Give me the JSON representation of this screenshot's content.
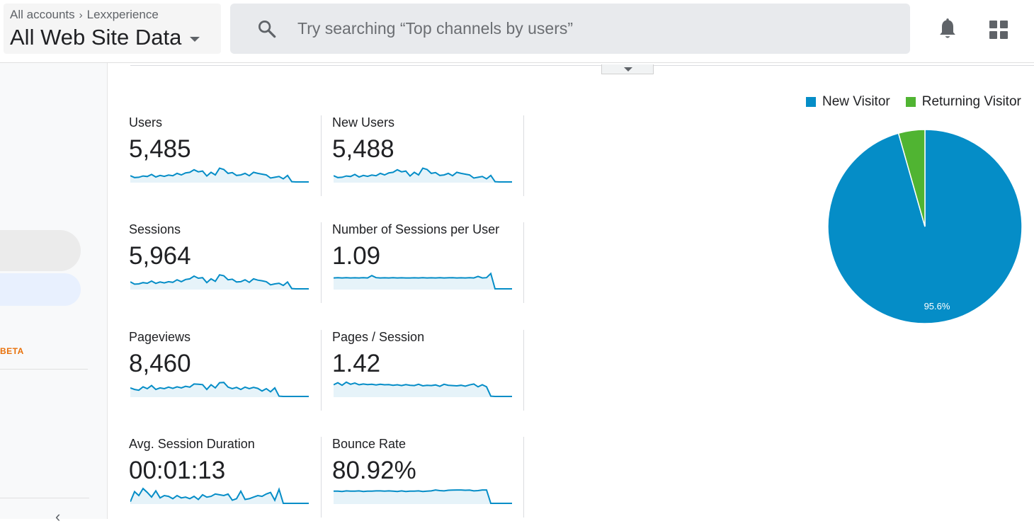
{
  "header": {
    "breadcrumb": [
      "All accounts",
      "Lexxperience"
    ],
    "view_name": "All Web Site Data",
    "search_placeholder": "Try searching “Top channels by users”"
  },
  "sidebar": {
    "beta_label": "BETA"
  },
  "metrics": [
    {
      "label": "Users",
      "value": "5,485",
      "trend": [
        0.4,
        0.28,
        0.3,
        0.38,
        0.35,
        0.48,
        0.32,
        0.42,
        0.36,
        0.44,
        0.4,
        0.55,
        0.45,
        0.58,
        0.62,
        0.78,
        0.65,
        0.7,
        0.38,
        0.62,
        0.45,
        0.88,
        0.8,
        0.55,
        0.6,
        0.42,
        0.45,
        0.55,
        0.4,
        0.62,
        0.55,
        0.5,
        0.45,
        0.25,
        0.3,
        0.35,
        0.2,
        0.42,
        0.02,
        0.0,
        0.0,
        0.0,
        0.0
      ]
    },
    {
      "label": "New Users",
      "value": "5,488",
      "trend": [
        0.4,
        0.28,
        0.3,
        0.38,
        0.35,
        0.48,
        0.32,
        0.42,
        0.36,
        0.44,
        0.4,
        0.55,
        0.45,
        0.58,
        0.62,
        0.78,
        0.65,
        0.7,
        0.38,
        0.62,
        0.45,
        0.88,
        0.8,
        0.55,
        0.6,
        0.42,
        0.45,
        0.55,
        0.4,
        0.62,
        0.55,
        0.5,
        0.45,
        0.25,
        0.3,
        0.35,
        0.2,
        0.42,
        0.02,
        0.0,
        0.0,
        0.0,
        0.0
      ]
    },
    {
      "label": "Sessions",
      "value": "5,964",
      "trend": [
        0.45,
        0.3,
        0.32,
        0.4,
        0.36,
        0.5,
        0.35,
        0.44,
        0.38,
        0.46,
        0.42,
        0.58,
        0.46,
        0.6,
        0.64,
        0.82,
        0.68,
        0.72,
        0.4,
        0.64,
        0.48,
        0.9,
        0.84,
        0.58,
        0.62,
        0.44,
        0.46,
        0.58,
        0.42,
        0.64,
        0.56,
        0.52,
        0.46,
        0.26,
        0.32,
        0.36,
        0.22,
        0.44,
        0.02,
        0.0,
        0.0,
        0.0,
        0.0
      ]
    },
    {
      "label": "Number of Sessions per User",
      "value": "1.09",
      "trend": [
        0.7,
        0.72,
        0.7,
        0.72,
        0.7,
        0.71,
        0.7,
        0.72,
        0.7,
        0.85,
        0.72,
        0.7,
        0.71,
        0.7,
        0.72,
        0.7,
        0.71,
        0.7,
        0.7,
        0.71,
        0.7,
        0.72,
        0.7,
        0.71,
        0.7,
        0.72,
        0.7,
        0.71,
        0.72,
        0.7,
        0.71,
        0.7,
        0.72,
        0.7,
        0.8,
        0.7,
        0.72,
        0.98,
        0.0,
        0.0,
        0.0,
        0.0,
        0.0
      ]
    },
    {
      "label": "Pageviews",
      "value": "8,460",
      "trend": [
        0.55,
        0.45,
        0.4,
        0.62,
        0.5,
        0.7,
        0.45,
        0.55,
        0.5,
        0.6,
        0.52,
        0.62,
        0.55,
        0.65,
        0.6,
        0.8,
        0.78,
        0.76,
        0.45,
        0.75,
        0.55,
        0.88,
        0.9,
        0.6,
        0.5,
        0.58,
        0.45,
        0.6,
        0.5,
        0.58,
        0.52,
        0.35,
        0.5,
        0.3,
        0.55,
        0.02,
        0.0,
        0.0,
        0.0,
        0.0,
        0.0,
        0.0,
        0.0
      ]
    },
    {
      "label": "Pages / Session",
      "value": "1.42",
      "trend": [
        0.75,
        0.88,
        0.72,
        0.92,
        0.78,
        0.86,
        0.75,
        0.8,
        0.76,
        0.78,
        0.74,
        0.78,
        0.75,
        0.76,
        0.72,
        0.75,
        0.7,
        0.76,
        0.72,
        0.7,
        0.78,
        0.68,
        0.72,
        0.7,
        0.74,
        0.65,
        0.78,
        0.72,
        0.7,
        0.68,
        0.72,
        0.66,
        0.74,
        0.8,
        0.62,
        0.75,
        0.62,
        0.02,
        0.0,
        0.0,
        0.0,
        0.0,
        0.0
      ]
    },
    {
      "label": "Avg. Session Duration",
      "value": "00:01:13",
      "trend": [
        0.1,
        0.75,
        0.5,
        0.95,
        0.7,
        0.4,
        0.8,
        0.35,
        0.5,
        0.45,
        0.3,
        0.5,
        0.35,
        0.4,
        0.3,
        0.45,
        0.25,
        0.55,
        0.4,
        0.45,
        0.6,
        0.55,
        0.5,
        0.6,
        0.2,
        0.3,
        0.78,
        0.25,
        0.3,
        0.4,
        0.5,
        0.45,
        0.6,
        0.7,
        0.2,
        0.9,
        0.0,
        0.0,
        0.0,
        0.0,
        0.0,
        0.0,
        0.0
      ]
    },
    {
      "label": "Bounce Rate",
      "value": "80.92%",
      "trend": [
        0.78,
        0.78,
        0.76,
        0.8,
        0.78,
        0.78,
        0.8,
        0.76,
        0.78,
        0.78,
        0.8,
        0.8,
        0.78,
        0.8,
        0.78,
        0.76,
        0.8,
        0.76,
        0.78,
        0.78,
        0.8,
        0.76,
        0.78,
        0.8,
        0.86,
        0.82,
        0.8,
        0.84,
        0.85,
        0.86,
        0.86,
        0.84,
        0.85,
        0.8,
        0.82,
        0.86,
        0.86,
        0.0,
        0.0,
        0.0,
        0.0,
        0.0,
        0.0
      ]
    }
  ],
  "colors": {
    "sparkline": "#058dc7",
    "sparkline_fill": "#e6f3f9",
    "new_visitor": "#058dc7",
    "returning_visitor": "#50b432"
  },
  "chart_data": {
    "type": "pie",
    "legend_position": "top-right",
    "series": [
      {
        "name": "New Visitor",
        "value": 95.6,
        "label": "95.6%"
      },
      {
        "name": "Returning Visitor",
        "value": 4.4,
        "label": ""
      }
    ]
  },
  "icons": {
    "search": "search-icon",
    "notifications": "bell-icon",
    "apps": "apps-grid-icon",
    "toggle": "chevron-down-icon"
  }
}
